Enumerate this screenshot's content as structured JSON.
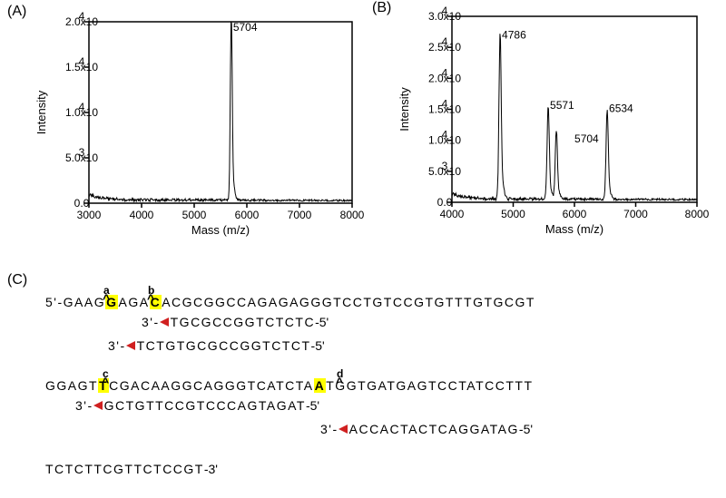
{
  "panelA": {
    "label": "(A)",
    "type": "line",
    "xlabel": "Mass (m/z)",
    "ylabel": "Intensity",
    "xlim": [
      3000,
      8000
    ],
    "ylim": [
      0,
      20000
    ],
    "xticks": [
      3000,
      4000,
      5000,
      6000,
      7000,
      8000
    ],
    "yticks": [
      0,
      5000,
      10000,
      15000,
      20000
    ],
    "ytick_labels": [
      "0.0",
      "5.0x10",
      "1.0x10",
      "1.5x10",
      "2.0x10"
    ],
    "ytick_exponents": [
      "",
      "3",
      "4",
      "4",
      "4"
    ],
    "peaks": [
      {
        "mz": 5704,
        "intensity": 19800,
        "label": "5704"
      }
    ],
    "line_color": "#000000",
    "axis_color": "#000000",
    "background_color": "#ffffff",
    "font_size_ticks": 12,
    "font_size_axis": 13
  },
  "panelB": {
    "label": "(B)",
    "type": "line",
    "xlabel": "Mass (m/z)",
    "ylabel": "Intensity",
    "xlim": [
      4000,
      8000
    ],
    "ylim": [
      0,
      30000
    ],
    "xticks": [
      4000,
      5000,
      6000,
      7000,
      8000
    ],
    "yticks": [
      0,
      5000,
      10000,
      15000,
      20000,
      25000,
      30000
    ],
    "ytick_labels": [
      "0.0",
      "5.0x10",
      "1.0x10",
      "1.5x10",
      "2.0x10",
      "2.5x10",
      "3.0x10"
    ],
    "ytick_exponents": [
      "",
      "3",
      "4",
      "4",
      "4",
      "4",
      "4"
    ],
    "peaks": [
      {
        "mz": 4786,
        "intensity": 25800,
        "label": "4786"
      },
      {
        "mz": 5571,
        "intensity": 14500,
        "label": "5571"
      },
      {
        "mz": 5704,
        "intensity": 10800,
        "label": "5704"
      },
      {
        "mz": 6534,
        "intensity": 14000,
        "label": "6534"
      }
    ],
    "line_color": "#000000",
    "axis_color": "#000000",
    "background_color": "#ffffff",
    "font_size_ticks": 12,
    "font_size_axis": 13
  },
  "panelC": {
    "label": "(C)",
    "highlight_bg": "#ffff00",
    "arrow_color": "#d02020",
    "font_size": 14,
    "letter_spacing": 1.5,
    "sequences": {
      "row1_top": {
        "five_prime": "5'-",
        "pre_a": "GAAG",
        "hl_a": "G",
        "mid_ab": "AGA",
        "hl_b": "C",
        "post_b": "ACGCGGCCAGAGAGGGTCCTGTCCGTGTTTGTGCGT",
        "annot_a": "a",
        "annot_b": "b"
      },
      "row1_probe1": {
        "three": "3'-",
        "seq": "TGCGCCGGTCTCTC",
        "five": "-5'"
      },
      "row1_probe2": {
        "three": "3'-",
        "seq": "TCTGTGCGCCGGTCTCT",
        "five": "-5'"
      },
      "row2_top": {
        "pre_c": "GGAGT",
        "hl_c": "T",
        "mid_cd": "CGACAAGGCAGGGTCATCTA",
        "hl_d": "A",
        "post_d": "TGGTGATGAGTCCTATCCTTT",
        "annot_c": "c",
        "annot_d": "d"
      },
      "row2_probe3": {
        "three": "3'-",
        "seq": "GCTGTTCCGTCCCAGTAGAT",
        "five": "-5'"
      },
      "row2_probe4": {
        "three": "3'-",
        "seq": "ACCACTACTCAGGATAG",
        "five": "-5'"
      },
      "row3": {
        "seq": "TCTCTTCGTTCTCCGT",
        "three_prime": "-3'"
      }
    }
  }
}
